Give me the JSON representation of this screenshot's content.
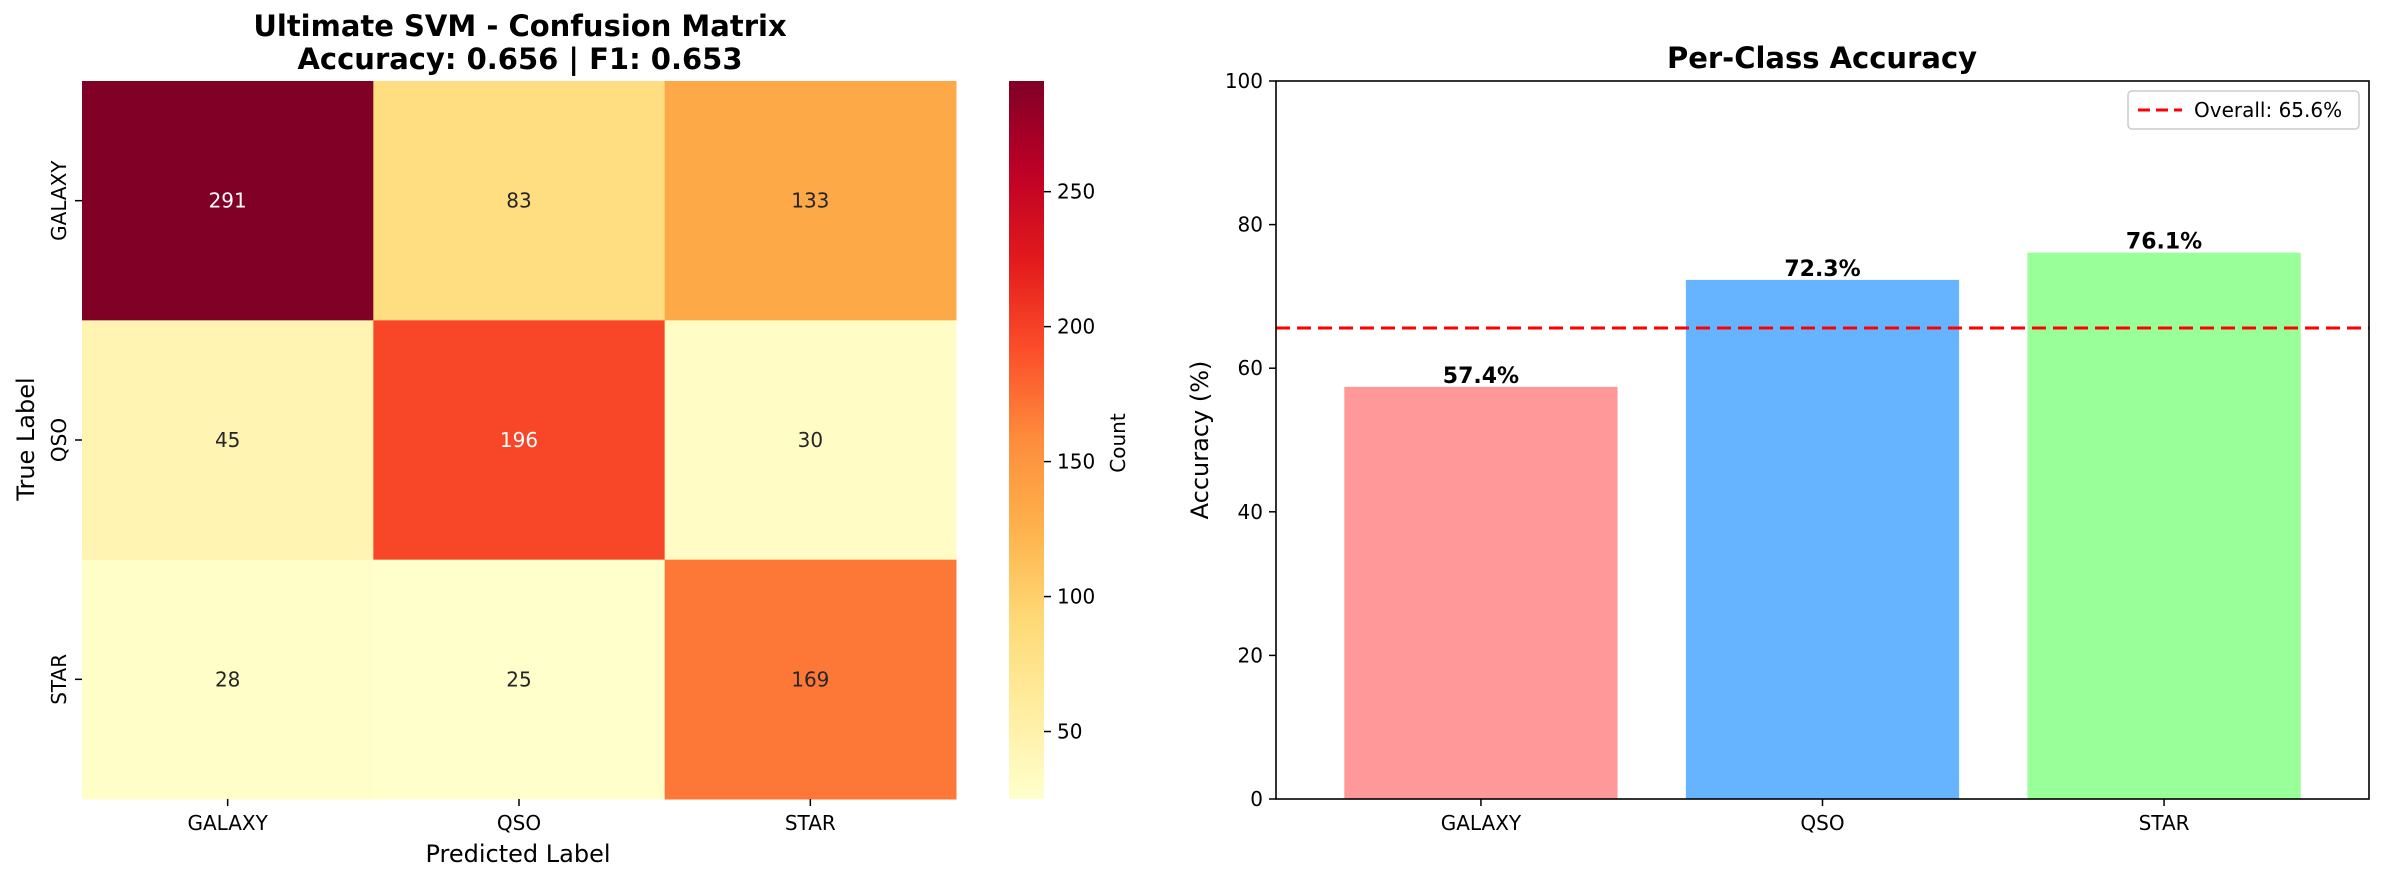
{
  "chart_data": [
    {
      "type": "heatmap",
      "title": "Ultimate SVM - Confusion Matrix",
      "subtitle": "Accuracy: 0.656 | F1: 0.653",
      "xlabel": "Predicted Label",
      "ylabel": "True Label",
      "x_categories": [
        "GALAXY",
        "QSO",
        "STAR"
      ],
      "y_categories": [
        "GALAXY",
        "QSO",
        "STAR"
      ],
      "values": [
        [
          291,
          83,
          133
        ],
        [
          45,
          196,
          30
        ],
        [
          28,
          25,
          169
        ]
      ],
      "colorbar": {
        "label": "Count",
        "range": [
          25,
          291
        ],
        "ticks": [
          "50",
          "100",
          "150",
          "200",
          "250"
        ],
        "colormap": "YlOrRd"
      }
    },
    {
      "type": "bar",
      "title": "Per-Class Accuracy",
      "xlabel": "",
      "ylabel": "Accuracy (%)",
      "categories": [
        "GALAXY",
        "QSO",
        "STAR"
      ],
      "values": [
        57.4,
        72.3,
        76.1
      ],
      "value_labels": [
        "57.4%",
        "72.3%",
        "76.1%"
      ],
      "colors": [
        "#ff9999",
        "#66b3ff",
        "#99ff99"
      ],
      "ylim": [
        0,
        100
      ],
      "yticks": [
        "0",
        "20",
        "40",
        "60",
        "80",
        "100"
      ],
      "reference_line": {
        "value": 65.6,
        "label": "Overall: 65.6%",
        "color": "#ff0000",
        "style": "dashed"
      },
      "legend": "top-right",
      "grid": false
    }
  ]
}
